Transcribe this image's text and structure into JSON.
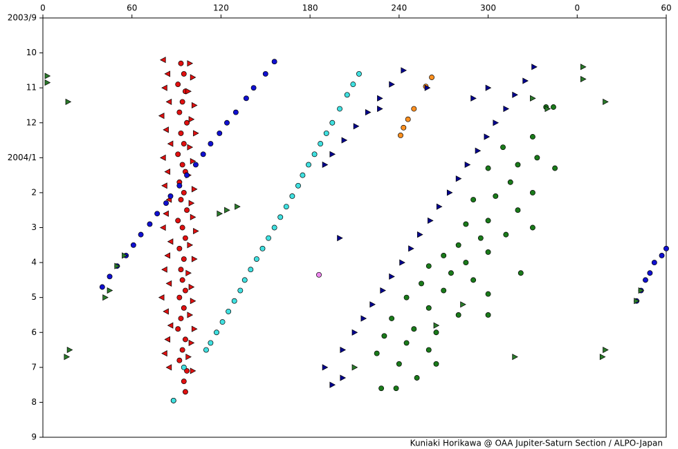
{
  "chart_data": {
    "type": "scatter",
    "footer": "Kuniaki Horikawa @ OAA Jupiter-Saturn Section / ALPO-Japan",
    "xlim": [
      0,
      420
    ],
    "xticks": [
      0,
      60,
      120,
      180,
      240,
      300,
      {
        "value": 360,
        "label": "0"
      },
      {
        "value": 420,
        "label": "60"
      }
    ],
    "ylim": [
      0,
      12
    ],
    "y_inverted": true,
    "yticks": [
      {
        "value": 0,
        "label": "2003/9"
      },
      {
        "value": 1,
        "label": "10"
      },
      {
        "value": 2,
        "label": "11"
      },
      {
        "value": 3,
        "label": "12"
      },
      {
        "value": 4,
        "label": "2004/1"
      },
      {
        "value": 5,
        "label": "2"
      },
      {
        "value": 6,
        "label": "3"
      },
      {
        "value": 7,
        "label": "4"
      },
      {
        "value": 8,
        "label": "5"
      },
      {
        "value": 9,
        "label": "6"
      },
      {
        "value": 10,
        "label": "7"
      },
      {
        "value": 11,
        "label": "8"
      },
      {
        "value": 12,
        "label": "9"
      }
    ],
    "series": [
      {
        "color": "#e01010",
        "marker": "circle",
        "x": [
          93,
          95,
          91,
          96,
          94,
          92,
          97,
          93,
          95,
          91,
          94,
          96,
          92,
          95,
          93,
          97,
          91,
          94,
          96,
          92,
          95,
          93,
          94,
          96,
          92,
          95,
          93,
          91,
          96,
          94,
          92,
          97,
          88,
          96,
          95
        ],
        "values": [
          1.3,
          1.6,
          1.9,
          2.1,
          2.4,
          2.7,
          3.0,
          3.3,
          3.6,
          3.9,
          4.2,
          4.4,
          4.7,
          5.0,
          5.2,
          5.5,
          5.8,
          6.0,
          6.3,
          6.6,
          6.9,
          7.2,
          7.5,
          7.8,
          8.0,
          8.3,
          8.6,
          8.9,
          9.2,
          9.5,
          9.8,
          10.1,
          10.95,
          10.7,
          10.4
        ]
      },
      {
        "color": "#e01010",
        "marker": "tri-left",
        "x": [
          81,
          84,
          82,
          85,
          80,
          83,
          86,
          81,
          84,
          82,
          85,
          83,
          81,
          86,
          84,
          82,
          85,
          80,
          83,
          86,
          84,
          82,
          85
        ],
        "values": [
          1.2,
          1.6,
          2.0,
          2.4,
          2.8,
          3.2,
          3.6,
          4.0,
          4.4,
          4.8,
          5.2,
          5.6,
          6.0,
          6.4,
          6.8,
          7.2,
          7.6,
          8.0,
          8.4,
          8.8,
          9.2,
          9.6,
          10.0
        ]
      },
      {
        "color": "#e01010",
        "marker": "tri-right",
        "x": [
          99,
          101,
          98,
          102,
          100,
          103,
          99,
          101,
          98,
          102,
          100,
          101,
          103,
          99,
          102,
          98,
          100,
          101,
          99,
          102,
          100,
          98,
          101
        ],
        "values": [
          1.3,
          1.7,
          2.1,
          2.5,
          2.9,
          3.3,
          3.7,
          4.1,
          4.5,
          4.9,
          5.3,
          5.7,
          6.1,
          6.5,
          6.9,
          7.3,
          7.7,
          8.1,
          8.5,
          8.9,
          9.3,
          9.7,
          10.1
        ]
      },
      {
        "color": "#1010d0",
        "marker": "circle",
        "x": [
          156,
          150,
          142,
          137,
          130,
          124,
          119,
          113,
          108,
          103,
          97,
          92,
          86,
          83,
          77,
          72,
          66,
          61,
          56,
          50,
          45,
          40,
          420,
          417,
          412,
          409,
          406,
          403,
          400
        ],
        "values": [
          1.25,
          1.6,
          2.0,
          2.3,
          2.7,
          3.0,
          3.3,
          3.6,
          3.9,
          4.2,
          4.5,
          4.8,
          5.1,
          5.3,
          5.6,
          5.9,
          6.2,
          6.5,
          6.8,
          7.1,
          7.4,
          7.7,
          6.6,
          6.8,
          7.0,
          7.3,
          7.5,
          7.8,
          8.1
        ]
      },
      {
        "color": "#40e0e0",
        "marker": "circle",
        "x": [
          213,
          209,
          205,
          200,
          195,
          191,
          187,
          183,
          179,
          175,
          172,
          168,
          164,
          160,
          156,
          152,
          148,
          144,
          140,
          136,
          133,
          129,
          125,
          121,
          117,
          113,
          110,
          95,
          88
        ],
        "values": [
          1.6,
          1.9,
          2.2,
          2.6,
          3.0,
          3.3,
          3.6,
          3.9,
          4.2,
          4.5,
          4.8,
          5.1,
          5.4,
          5.7,
          6.0,
          6.3,
          6.6,
          6.9,
          7.2,
          7.5,
          7.8,
          8.1,
          8.4,
          8.7,
          9.0,
          9.3,
          9.5,
          10.0,
          10.95
        ]
      },
      {
        "color": "#ff9020",
        "marker": "circle",
        "x": [
          262,
          258,
          250,
          246,
          243,
          241
        ],
        "values": [
          1.7,
          1.96,
          2.6,
          2.9,
          3.14,
          3.36
        ]
      },
      {
        "color": "#1a7a1a",
        "marker": "circle",
        "x": [
          344,
          339,
          330,
          310,
          333,
          320,
          300,
          315,
          330,
          305,
          290,
          320,
          300,
          285,
          312,
          295,
          280,
          300,
          270,
          285,
          260,
          275,
          290,
          255,
          270,
          300,
          245,
          260,
          280,
          235,
          250,
          265,
          230,
          245,
          260,
          225,
          240,
          265,
          252,
          228,
          238,
          330,
          345,
          322,
          300
        ],
        "values": [
          2.55,
          2.55,
          3.4,
          3.7,
          4.0,
          4.2,
          4.3,
          4.7,
          5.0,
          5.1,
          5.2,
          5.5,
          5.8,
          5.9,
          6.2,
          6.3,
          6.5,
          6.7,
          6.8,
          7.0,
          7.1,
          7.3,
          7.5,
          7.6,
          7.8,
          7.9,
          8.0,
          8.3,
          8.5,
          8.6,
          8.9,
          9.0,
          9.1,
          9.3,
          9.5,
          9.6,
          9.9,
          9.9,
          10.3,
          10.6,
          10.6,
          6.0,
          4.3,
          7.3,
          8.5
        ]
      },
      {
        "color": "#000090",
        "marker": "tri-right",
        "x": [
          331,
          325,
          318,
          312,
          305,
          299,
          293,
          286,
          280,
          274,
          267,
          261,
          254,
          248,
          242,
          235,
          229,
          222,
          216,
          210,
          202,
          243,
          235,
          227,
          219,
          211,
          203,
          195,
          190,
          200,
          190,
          195,
          202,
          259,
          227,
          300,
          290
        ],
        "values": [
          1.4,
          1.8,
          2.2,
          2.6,
          3.0,
          3.4,
          3.8,
          4.2,
          4.6,
          5.0,
          5.4,
          5.8,
          6.2,
          6.6,
          7.0,
          7.4,
          7.8,
          8.2,
          8.6,
          9.0,
          9.5,
          1.5,
          1.9,
          2.3,
          2.7,
          3.1,
          3.5,
          3.9,
          4.2,
          6.3,
          10.0,
          10.5,
          10.3,
          2.0,
          2.6,
          2.0,
          2.3
        ]
      },
      {
        "color": "#2a7a2a",
        "marker": "tri-right",
        "x": [
          3,
          3,
          17,
          364,
          364,
          379,
          119,
          124,
          131,
          42,
          45,
          16,
          18,
          377,
          379,
          400,
          403,
          330,
          318,
          340,
          210,
          265,
          283,
          55,
          50
        ],
        "values": [
          1.66,
          1.85,
          2.4,
          1.4,
          1.75,
          2.4,
          5.6,
          5.5,
          5.4,
          8.0,
          7.8,
          9.7,
          9.5,
          9.7,
          9.5,
          8.1,
          7.8,
          2.3,
          9.7,
          2.6,
          10.0,
          8.8,
          8.2,
          6.8,
          7.1
        ]
      },
      {
        "color": "#ee88ee",
        "marker": "circle",
        "x": [
          186
        ],
        "values": [
          7.35
        ]
      }
    ]
  }
}
